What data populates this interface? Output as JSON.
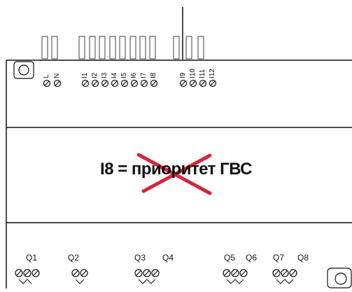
{
  "center_label": "I8 = приоритет ГВС",
  "inputs": [
    "L",
    "N",
    "I1",
    "I2",
    "I3",
    "I4",
    "I5",
    "I6",
    "I7",
    "I8",
    "I9",
    "I10",
    "I11",
    "I12"
  ],
  "outputs": [
    "Q1",
    "Q2",
    "Q3",
    "Q4",
    "Q5",
    "Q6",
    "Q7",
    "Q8"
  ],
  "colors": {
    "line": "#111111",
    "cross": "#d8253a"
  }
}
